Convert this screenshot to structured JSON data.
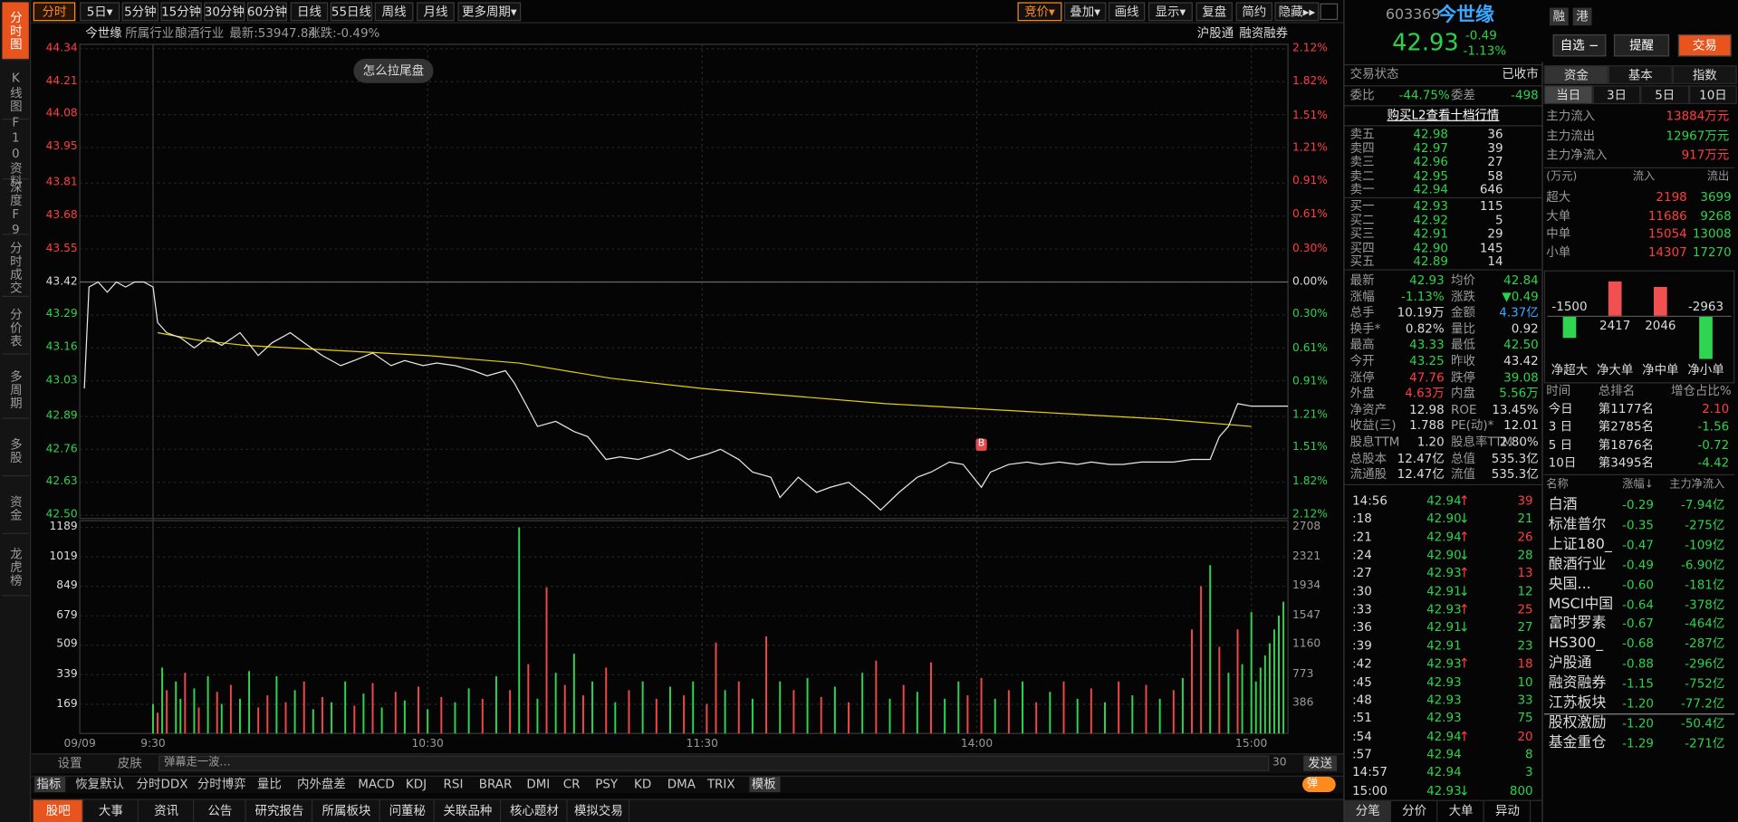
{
  "sidebar": [
    "分时图",
    "K线图",
    "F10资料",
    "深度F9",
    "分时成交",
    "分价表",
    "多周期",
    "多股",
    "资金",
    "龙虎榜"
  ],
  "toolbar": {
    "left": [
      "分时",
      "5日▾",
      "5分钟",
      "15分钟",
      "30分钟",
      "60分钟",
      "日线",
      "55日线",
      "周线",
      "月线",
      "更多周期▾"
    ],
    "right": [
      "竞价▾",
      "叠加▾",
      "画线",
      "显示▾",
      "复盘",
      "简约",
      "隐藏▸▸"
    ]
  },
  "info": {
    "name": "今世缘",
    "industry_label": "所属行业",
    "industry": "酿酒行业",
    "latest": "最新:53947.84",
    "change": "涨跌:-0.49%",
    "tags": [
      "沪股通",
      "融资融券"
    ]
  },
  "popup": "怎么拉尾盘",
  "chart": {
    "type": "line",
    "xlim": [
      -16,
      248
    ],
    "xticks": [
      {
        "value": -16,
        "label": "09/09"
      },
      {
        "value": 0,
        "label": "9:30"
      },
      {
        "value": 60,
        "label": "10:30"
      },
      {
        "value": 120,
        "label": "11:30"
      },
      {
        "value": 180,
        "label": "14:00"
      },
      {
        "value": 240,
        "label": "15:00"
      }
    ],
    "ylim": [
      42.5,
      44.34
    ],
    "yticks": [
      44.34,
      44.21,
      44.08,
      43.95,
      43.81,
      43.68,
      43.55,
      43.42,
      43.29,
      43.16,
      43.03,
      42.89,
      42.76,
      42.63,
      {
        "value": 42.5,
        "label": "42.50"
      }
    ],
    "y2lim": [
      -2.12,
      2.12
    ],
    "y2ticks": [
      {
        "value": 2.12,
        "label": "2.12%"
      },
      {
        "value": 1.82,
        "label": "1.82%"
      },
      {
        "value": 1.51,
        "label": "1.51%"
      },
      {
        "value": 1.21,
        "label": "1.21%"
      },
      {
        "value": 0.91,
        "label": "0.91%"
      },
      {
        "value": 0.61,
        "label": "0.61%"
      },
      {
        "value": 0.3,
        "label": "0.30%"
      },
      {
        "value": 0,
        "label": "0.00%"
      },
      {
        "value": -0.3,
        "label": "0.30%"
      },
      {
        "value": -0.61,
        "label": "0.61%"
      },
      {
        "value": -0.91,
        "label": "0.91%"
      },
      {
        "value": -1.21,
        "label": "1.21%"
      },
      {
        "value": -1.51,
        "label": "1.51%"
      },
      {
        "value": -1.82,
        "label": "1.82%"
      },
      {
        "value": -2.12,
        "label": "2.12%"
      }
    ],
    "price": {
      "color": "#e8e8e8",
      "x": [
        -15,
        -14,
        -12,
        -10,
        -8,
        -6,
        -4,
        -2,
        0,
        1,
        3,
        6,
        9,
        12,
        15,
        19,
        23,
        26,
        30,
        33,
        37,
        41,
        44,
        48,
        52,
        55,
        59,
        62,
        66,
        70,
        73,
        77,
        79,
        82,
        84,
        88,
        92,
        95,
        99,
        102,
        106,
        110,
        113,
        117,
        121,
        124,
        128,
        131,
        135,
        137,
        141,
        145,
        148,
        152,
        156,
        159,
        163,
        167,
        170,
        174,
        177,
        181,
        183,
        187,
        191,
        194,
        198,
        202,
        205,
        209,
        212,
        216,
        220,
        223,
        227,
        231,
        233,
        235,
        237,
        240,
        248
      ],
      "values": [
        43.0,
        43.4,
        43.42,
        43.38,
        43.42,
        43.4,
        43.42,
        43.42,
        43.4,
        43.26,
        43.22,
        43.2,
        43.16,
        43.2,
        43.17,
        43.22,
        43.13,
        43.18,
        43.22,
        43.18,
        43.13,
        43.09,
        43.11,
        43.14,
        43.09,
        43.11,
        43.09,
        43.1,
        43.09,
        43.07,
        43.05,
        43.07,
        43.02,
        42.92,
        42.85,
        42.87,
        42.83,
        42.81,
        42.72,
        42.73,
        42.72,
        42.74,
        42.76,
        42.72,
        42.74,
        42.76,
        42.72,
        42.67,
        42.65,
        42.57,
        42.65,
        42.59,
        42.61,
        42.63,
        42.57,
        42.52,
        42.59,
        42.65,
        42.67,
        42.71,
        42.7,
        42.61,
        42.67,
        42.7,
        42.71,
        42.7,
        42.71,
        42.7,
        42.71,
        42.7,
        42.7,
        42.71,
        42.71,
        42.71,
        42.72,
        42.72,
        42.81,
        42.85,
        42.94,
        42.93,
        42.93
      ]
    },
    "average": {
      "color": "#e6d200",
      "x": [
        1,
        10,
        20,
        40,
        60,
        80,
        100,
        120,
        140,
        160,
        180,
        200,
        220,
        240
      ],
      "values": [
        43.22,
        43.19,
        43.17,
        43.15,
        43.13,
        43.1,
        43.04,
        43.0,
        42.97,
        42.94,
        42.92,
        42.9,
        42.88,
        42.85
      ]
    },
    "buy_marker": {
      "label": "B",
      "x": 181,
      "value": 42.71
    },
    "volume": {
      "ylim": [
        0,
        1189
      ],
      "yticks": [
        1189,
        1019,
        849,
        679,
        509,
        339,
        169
      ],
      "y2lim": [
        0,
        2708
      ],
      "y2ticks": [
        2708,
        2321,
        1934,
        1547,
        1160,
        773,
        386
      ],
      "colors": {
        "up": "#f04848",
        "down": "#2fd451"
      },
      "x": [
        0,
        1,
        2,
        3,
        5,
        6,
        7,
        9,
        10,
        12,
        14,
        15,
        17,
        19,
        21,
        23,
        25,
        27,
        29,
        31,
        33,
        35,
        37,
        39,
        42,
        44,
        46,
        48,
        50,
        53,
        55,
        58,
        60,
        63,
        66,
        69,
        72,
        75,
        78,
        80,
        82,
        84,
        86,
        88,
        90,
        92,
        94,
        96,
        99,
        101,
        104,
        107,
        110,
        113,
        116,
        118,
        121,
        123,
        125,
        128,
        131,
        134,
        137,
        140,
        143,
        146,
        149,
        152,
        155,
        158,
        161,
        164,
        167,
        170,
        173,
        176,
        178,
        181,
        184,
        187,
        190,
        193,
        196,
        199,
        202,
        205,
        208,
        211,
        214,
        217,
        220,
        223,
        225,
        227,
        229,
        231,
        233,
        235,
        237,
        238,
        240,
        241,
        242,
        243,
        244,
        245,
        246,
        247
      ],
      "values": [
        170,
        120,
        380,
        250,
        300,
        200,
        350,
        260,
        150,
        330,
        240,
        170,
        280,
        200,
        360,
        150,
        220,
        330,
        180,
        250,
        300,
        140,
        210,
        180,
        300,
        160,
        230,
        290,
        150,
        240,
        190,
        270,
        140,
        210,
        180,
        260,
        200,
        330,
        250,
        1189,
        400,
        200,
        843,
        350,
        280,
        460,
        220,
        300,
        380,
        180,
        250,
        300,
        200,
        270,
        220,
        300,
        170,
        524,
        250,
        300,
        200,
        560,
        300,
        250,
        320,
        210,
        270,
        180,
        350,
        420,
        200,
        280,
        240,
        410,
        200,
        300,
        220,
        320,
        200,
        250,
        300,
        180,
        240,
        300,
        200,
        260,
        180,
        300,
        220,
        280,
        200,
        250,
        320,
        600,
        850,
        971,
        500,
        350,
        600,
        400,
        700,
        300,
        380,
        450,
        520,
        600,
        680,
        760
      ],
      "dirs": [
        "down",
        "up",
        "down",
        "up",
        "down",
        "down",
        "up",
        "down",
        "up",
        "down",
        "up",
        "down",
        "up",
        "down",
        "down",
        "up",
        "up",
        "down",
        "up",
        "down",
        "up",
        "down",
        "up",
        "down",
        "down",
        "up",
        "down",
        "up",
        "down",
        "up",
        "down",
        "up",
        "down",
        "up",
        "down",
        "down",
        "up",
        "down",
        "up",
        "down",
        "up",
        "down",
        "up",
        "down",
        "up",
        "down",
        "up",
        "down",
        "up",
        "down",
        "up",
        "down",
        "up",
        "down",
        "up",
        "down",
        "up",
        "up",
        "down",
        "up",
        "down",
        "up",
        "down",
        "up",
        "down",
        "up",
        "down",
        "up",
        "down",
        "up",
        "down",
        "up",
        "down",
        "up",
        "down",
        "down",
        "up",
        "up",
        "down",
        "up",
        "down",
        "up",
        "down",
        "up",
        "down",
        "up",
        "down",
        "up",
        "down",
        "up",
        "down",
        "up",
        "down",
        "up",
        "up",
        "down",
        "up",
        "down",
        "up",
        "down",
        "down",
        "down",
        "down",
        "down",
        "down",
        "down",
        "down",
        "down"
      ]
    }
  },
  "bottom_bar": {
    "settings": "设置",
    "skin": "皮肤",
    "danmu": "弹幕走一波…",
    "count": "30",
    "send": "发送"
  },
  "indicators": [
    "指标",
    "恢复默认",
    "分时DDX",
    "分时博弈",
    "量比",
    "内外盘差",
    "MACD",
    "KDJ",
    "RSI",
    "BRAR",
    "DMI",
    "CR",
    "PSY",
    "KD",
    "DMA",
    "TRIX",
    "模板"
  ],
  "toggle": "弹",
  "tabs": [
    "股吧",
    "大事",
    "资讯",
    "公告",
    "研究报告",
    "所属板块",
    "问董秘",
    "关联品种",
    "核心题材",
    "模拟交易"
  ],
  "quote": {
    "code": "603369",
    "name": "今世缘",
    "price": "42.93",
    "change": "-0.49",
    "pct": "-1.13%",
    "badges": [
      "融",
      "港"
    ],
    "buttons": [
      "自选 −",
      "提醒",
      "交易"
    ],
    "status_label": "交易状态",
    "status": "已收市",
    "ratio_label": "委比",
    "ratio": "-44.75%",
    "diff_label": "委差",
    "diff": "-498",
    "l2_link": "购买L2查看十档行情",
    "asks": [
      [
        "卖五",
        "42.98",
        "36"
      ],
      [
        "卖四",
        "42.97",
        "39"
      ],
      [
        "卖三",
        "42.96",
        "27"
      ],
      [
        "卖二",
        "42.95",
        "58"
      ],
      [
        "卖一",
        "42.94",
        "646"
      ]
    ],
    "bids": [
      [
        "买一",
        "42.93",
        "115"
      ],
      [
        "买二",
        "42.92",
        "5"
      ],
      [
        "买三",
        "42.91",
        "29"
      ],
      [
        "买四",
        "42.90",
        "145"
      ],
      [
        "买五",
        "42.89",
        "14"
      ]
    ],
    "stats": [
      [
        "最新",
        "42.93",
        "g",
        "均价",
        "42.84",
        "g"
      ],
      [
        "涨幅",
        "-1.13%",
        "g",
        "涨跌",
        "▼0.49",
        "g"
      ],
      [
        "总手",
        "10.19万",
        "w",
        "金额",
        "4.37亿",
        "b"
      ],
      [
        "换手*",
        "0.82%",
        "w",
        "量比",
        "0.92",
        "w"
      ],
      [
        "最高",
        "43.33",
        "g",
        "最低",
        "42.50",
        "g"
      ],
      [
        "今开",
        "43.25",
        "g",
        "昨收",
        "43.42",
        "w"
      ],
      [
        "涨停",
        "47.76",
        "r",
        "跌停",
        "39.08",
        "g"
      ],
      [
        "外盘",
        "4.63万",
        "r",
        "内盘",
        "5.56万",
        "g"
      ],
      [
        "净资产",
        "12.98",
        "w",
        "ROE",
        "13.45%",
        "w"
      ],
      [
        "收益(三)",
        "1.788",
        "w",
        "PE(动)*",
        "12.01",
        "w"
      ],
      [
        "股息TTM",
        "1.20",
        "w",
        "股息率TTM",
        "2.80%",
        "w"
      ],
      [
        "总股本",
        "12.47亿",
        "w",
        "总值",
        "535.3亿",
        "w"
      ],
      [
        "流通股",
        "12.47亿",
        "w",
        "流值",
        "535.3亿",
        "w"
      ]
    ],
    "trades": [
      [
        "14:56",
        "42.94",
        "↑",
        "39"
      ],
      [
        ":18",
        "42.90",
        "↓",
        "21"
      ],
      [
        ":21",
        "42.94",
        "↑",
        "26"
      ],
      [
        ":24",
        "42.90",
        "↓",
        "28"
      ],
      [
        ":27",
        "42.93",
        "↑",
        "13"
      ],
      [
        ":30",
        "42.91",
        "↓",
        "12"
      ],
      [
        ":33",
        "42.93",
        "↑",
        "25"
      ],
      [
        ":36",
        "42.91",
        "↓",
        "27"
      ],
      [
        ":39",
        "42.91",
        null,
        "23"
      ],
      [
        ":42",
        "42.93",
        "↑",
        "18"
      ],
      [
        ":45",
        "42.93",
        null,
        "10"
      ],
      [
        ":48",
        "42.93",
        null,
        "33"
      ],
      [
        ":51",
        "42.93",
        null,
        "75"
      ],
      [
        ":54",
        "42.94",
        "↑",
        "20"
      ],
      [
        ":57",
        "42.94",
        null,
        "8"
      ],
      [
        "14:57",
        "42.94",
        null,
        "3"
      ],
      [
        "15:00",
        "42.93",
        "↓",
        "800"
      ]
    ],
    "tabs": [
      "分笔",
      "分价",
      "大单",
      "异动"
    ]
  },
  "funds": {
    "tabs": [
      "资金",
      "基本",
      "指数"
    ],
    "periods": [
      "当日",
      "3日",
      "5日",
      "10日"
    ],
    "main": [
      [
        "主力流入",
        "13884万元"
      ],
      [
        "主力流出",
        "12967万元"
      ],
      [
        "主力净流入",
        "917万元"
      ]
    ],
    "flow_header": [
      "(万元)",
      "流入",
      "流出"
    ],
    "flows": [
      [
        "超大",
        "2198",
        "3699"
      ],
      [
        "大单",
        "11686",
        "9268"
      ],
      [
        "中单",
        "15054",
        "13008"
      ],
      [
        "小单",
        "14307",
        "17270"
      ]
    ],
    "flow_chart": {
      "type": "bar",
      "categories": [
        "净超大",
        "净大单",
        "净中单",
        "净小单"
      ],
      "values": [
        -1500,
        2417,
        2046,
        -2963
      ],
      "colors": {
        "up": "#f05050",
        "down": "#2fd451"
      }
    },
    "rank_header": [
      "时间",
      "总排名",
      "增仓占比%"
    ],
    "ranks": [
      [
        "今日",
        "第1177名",
        "2.10"
      ],
      [
        "3 日",
        "第2785名",
        "-1.56"
      ],
      [
        "5 日",
        "第1876名",
        "-0.72"
      ],
      [
        "10日",
        "第3495名",
        "-4.42"
      ]
    ],
    "sector_header": [
      "名称",
      "涨幅↓",
      "主力净流入"
    ],
    "sectors": [
      [
        "白酒",
        "-0.29",
        "-7.94亿"
      ],
      [
        "标准普尔",
        "-0.35",
        "-275亿"
      ],
      [
        "上证180_",
        "-0.47",
        "-109亿"
      ],
      [
        "酿酒行业",
        "-0.49",
        "-6.90亿"
      ],
      [
        "央国...",
        "-0.60",
        "-181亿"
      ],
      [
        "MSCI中国",
        "-0.64",
        "-378亿"
      ],
      [
        "富时罗素",
        "-0.67",
        "-464亿"
      ],
      [
        "HS300_",
        "-0.68",
        "-287亿"
      ],
      [
        "沪股通",
        "-0.88",
        "-296亿"
      ],
      [
        "融资融券",
        "-1.15",
        "-752亿"
      ],
      [
        "江苏板块",
        "-1.20",
        "-77.2亿"
      ],
      [
        "股权激励",
        "-1.20",
        "-50.4亿"
      ],
      [
        "基金重仓",
        "-1.29",
        "-271亿"
      ]
    ]
  }
}
